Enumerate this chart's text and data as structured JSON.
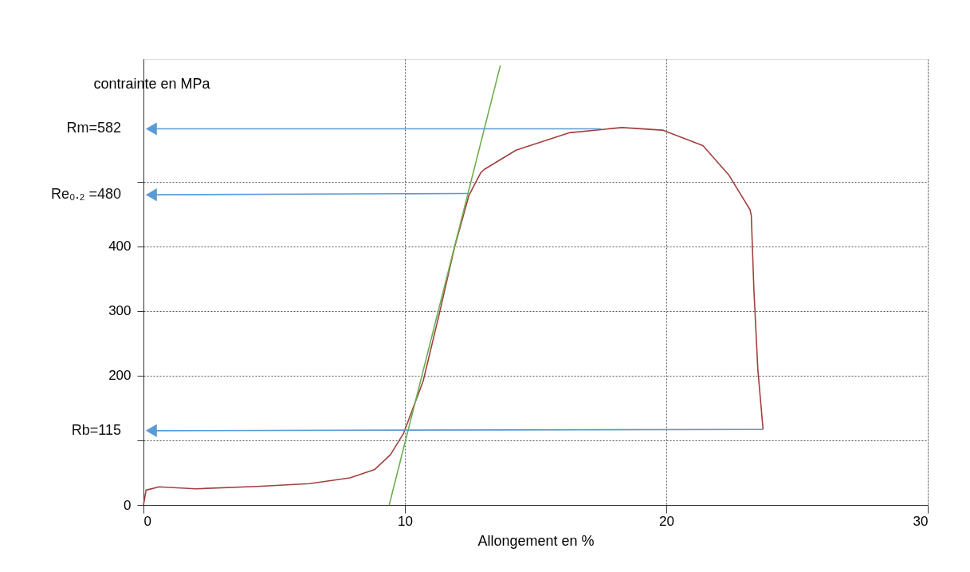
{
  "chart_data": {
    "type": "line",
    "xlabel": "Allongement en %",
    "ylabel": "contrainte en MPa",
    "xlim": [
      0,
      30
    ],
    "xticks": [
      0,
      10,
      20,
      30
    ],
    "ylim": [
      0,
      690
    ],
    "yticks": [
      0,
      {
        "value": 100,
        "label": null
      },
      200,
      300,
      400,
      {
        "value": 500,
        "label": null
      }
    ],
    "grid": true,
    "legend": false,
    "series": [
      {
        "color": "#a0403f",
        "x": [
          0,
          0.1,
          0.6,
          2.0,
          4.5,
          6.35,
          7.9,
          8.85,
          9.45,
          9.95,
          10.7,
          11.3,
          11.9,
          12.45,
          12.9,
          13.03,
          14.25,
          16.3,
          18.3,
          19.85,
          21.4,
          22.4,
          23.2,
          23.25,
          23.35,
          23.5,
          23.7
        ],
        "values": [
          0,
          23,
          28,
          25,
          29,
          33,
          42,
          55,
          78,
          111,
          192,
          293,
          399,
          479,
          514,
          519,
          549,
          576,
          584,
          580,
          556,
          510,
          457,
          448,
          333,
          210,
          117
        ]
      },
      {
        "color": "#6ab04c",
        "x": [
          9.4,
          13.65
        ],
        "values": [
          0,
          680
        ]
      },
      {
        "color": "#5b9bd5",
        "marker": "triangle",
        "x": [
          17.5,
          0.3
        ],
        "values": [
          582,
          582
        ]
      },
      {
        "color": "#5b9bd5",
        "marker": "triangle",
        "x": [
          12.4,
          0.3
        ],
        "values": [
          482,
          480
        ]
      },
      {
        "color": "#5b9bd5",
        "marker": "triangle",
        "x": [
          23.7,
          0.3
        ],
        "values": [
          117,
          115
        ]
      }
    ],
    "annotations": [
      "Rm=582",
      "Re₀.₂ =480",
      "Rb=115"
    ]
  }
}
